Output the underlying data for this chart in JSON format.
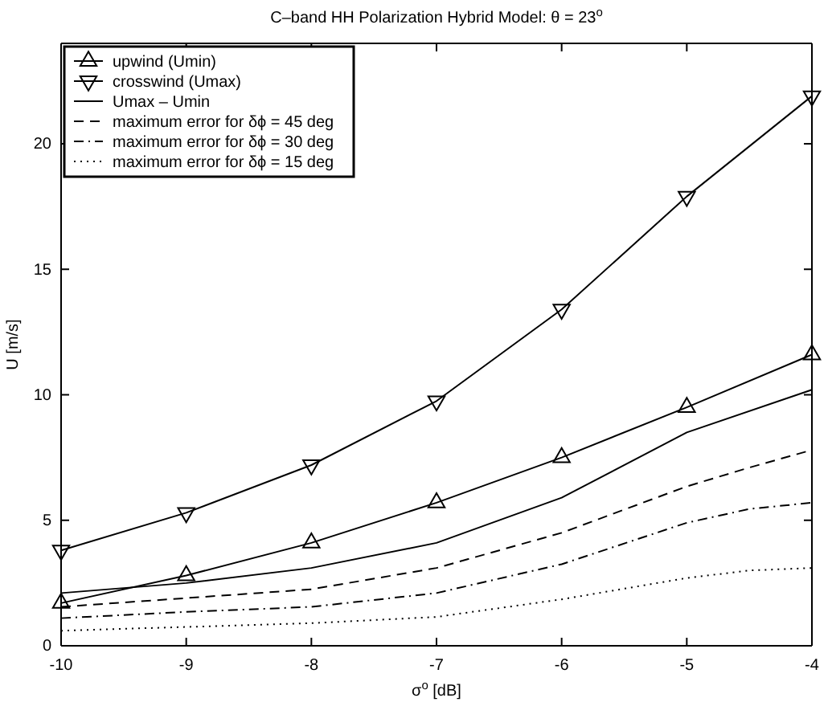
{
  "chart_data": {
    "type": "line",
    "title": "C–band HH Polarization Hybrid Model: θ = 23$^{o}$",
    "xlabel": "σ$^{o}$ [dB]",
    "ylabel": "U [m/s]",
    "xlim": [
      -10,
      -4
    ],
    "xticks": [
      -10,
      -9,
      -8,
      -7,
      -6,
      -5,
      -4
    ],
    "ylim": [
      0,
      24
    ],
    "yticks": [
      0,
      5,
      10,
      15,
      20
    ],
    "grid": false,
    "legend": "top left",
    "series": [
      {
        "name": "upwind (Umin)",
        "color": "#000000",
        "marker": "triangle",
        "line_style": "solid",
        "x": [
          -10,
          -9,
          -8,
          -7,
          -6,
          -5,
          -4
        ],
        "values": [
          1.7,
          2.8,
          4.1,
          5.7,
          7.5,
          9.5,
          11.6
        ]
      },
      {
        "name": "crosswind (Umax)",
        "color": "#000000",
        "marker": "triangle-down",
        "line_style": "solid",
        "x": [
          -10,
          -9,
          -8,
          -7,
          -6,
          -5,
          -4
        ],
        "values": [
          3.8,
          5.3,
          7.2,
          9.75,
          13.4,
          17.9,
          21.9
        ]
      },
      {
        "name": "Umax – Umin",
        "color": "#000000",
        "marker": "none",
        "line_style": "solid",
        "x": [
          -10,
          -9,
          -8,
          -7,
          -6,
          -5,
          -4
        ],
        "values": [
          2.1,
          2.5,
          3.1,
          4.1,
          5.9,
          8.5,
          10.2
        ]
      },
      {
        "name": "maximum error for δϕ = 45 deg",
        "color": "#000000",
        "marker": "none",
        "line_style": "dashed",
        "x": [
          -10,
          -9,
          -8,
          -7,
          -6,
          -5,
          -4.5,
          -4
        ],
        "values": [
          1.55,
          1.9,
          2.25,
          3.1,
          4.5,
          6.35,
          7.1,
          7.8
        ]
      },
      {
        "name": "maximum error for δϕ = 30 deg",
        "color": "#000000",
        "marker": "none",
        "line_style": "dashdot",
        "x": [
          -10,
          -9,
          -8,
          -7,
          -6,
          -5,
          -4.5,
          -4
        ],
        "values": [
          1.1,
          1.35,
          1.55,
          2.1,
          3.25,
          4.9,
          5.45,
          5.7
        ]
      },
      {
        "name": "maximum error for δϕ = 15 deg",
        "color": "#000000",
        "marker": "none",
        "line_style": "dotted",
        "x": [
          -10,
          -9,
          -8,
          -7,
          -6,
          -5,
          -4.5,
          -4
        ],
        "values": [
          0.6,
          0.75,
          0.9,
          1.15,
          1.85,
          2.7,
          3.0,
          3.1
        ]
      }
    ]
  }
}
